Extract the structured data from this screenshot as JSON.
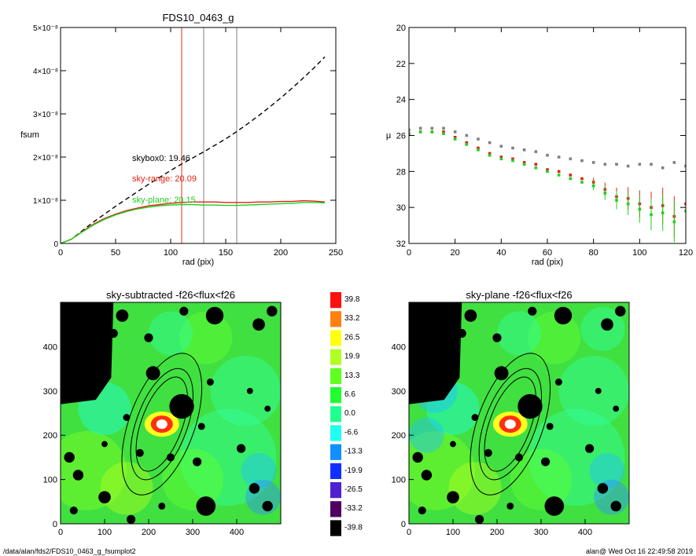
{
  "chart_data": [
    {
      "type": "line",
      "title": "FDS10_0463_g",
      "xlabel": "rad (pix)",
      "ylabel": "fsum",
      "xlim": [
        0,
        250
      ],
      "ylim": [
        0,
        5e-08
      ],
      "x_ticks": [
        "0",
        "50",
        "100",
        "150",
        "200",
        "250"
      ],
      "y_ticks": [
        "0",
        "1×10⁻⁸",
        "2×10⁻⁸",
        "3×10⁻⁸",
        "4×10⁻⁸",
        "5×10⁻⁸"
      ],
      "vlines": [
        {
          "x": 110,
          "color": "#e03020"
        },
        {
          "x": 130,
          "color": "#808080"
        },
        {
          "x": 160,
          "color": "#808080"
        }
      ],
      "annotations": [
        {
          "text": "skybox0: 19.46",
          "color": "#000000"
        },
        {
          "text": "sky-range: 20.09",
          "color": "#e02010"
        },
        {
          "text": "sky-plane: 20.15",
          "color": "#20d020"
        }
      ],
      "series": [
        {
          "style": "dashed",
          "color": "#000000",
          "x": [
            0,
            10,
            20,
            30,
            40,
            50,
            60,
            70,
            80,
            90,
            100,
            110,
            120,
            130,
            140,
            150,
            160,
            170,
            180,
            190,
            200,
            210,
            220,
            230,
            240
          ],
          "y": [
            0,
            1e-09,
            3e-09,
            5e-09,
            6.8e-09,
            8.6e-09,
            1.03e-08,
            1.2e-08,
            1.37e-08,
            1.53e-08,
            1.69e-08,
            1.84e-08,
            1.98e-08,
            2.12e-08,
            2.27e-08,
            2.42e-08,
            2.59e-08,
            2.77e-08,
            2.96e-08,
            3.16e-08,
            3.37e-08,
            3.59e-08,
            3.82e-08,
            4.06e-08,
            4.32e-08
          ]
        },
        {
          "style": "solid",
          "color": "#e02010",
          "x": [
            0,
            10,
            20,
            30,
            40,
            50,
            60,
            70,
            80,
            90,
            100,
            110,
            120,
            130,
            140,
            150,
            160,
            170,
            180,
            190,
            200,
            210,
            220,
            230,
            240
          ],
          "y": [
            0,
            1e-09,
            2.8e-09,
            4.5e-09,
            5.8e-09,
            6.8e-09,
            7.6e-09,
            8.2e-09,
            8.7e-09,
            9e-09,
            9.3e-09,
            9.5e-09,
            9.6e-09,
            9.6e-09,
            9.6e-09,
            9.5e-09,
            9.5e-09,
            9.5e-09,
            9.6e-09,
            9.6e-09,
            9.7e-09,
            9.7e-09,
            9.9e-09,
            9.8e-09,
            9.6e-09
          ]
        },
        {
          "style": "solid",
          "color": "#20d020",
          "x": [
            0,
            10,
            20,
            30,
            40,
            50,
            60,
            70,
            80,
            90,
            100,
            110,
            120,
            130,
            140,
            150,
            160,
            170,
            180,
            190,
            200,
            210,
            220,
            230,
            240
          ],
          "y": [
            0,
            1e-09,
            2.7e-09,
            4.3e-09,
            5.6e-09,
            6.6e-09,
            7.4e-09,
            8e-09,
            8.4e-09,
            8.7e-09,
            8.9e-09,
            9e-09,
            9e-09,
            8.9e-09,
            8.9e-09,
            8.8e-09,
            8.8e-09,
            8.9e-09,
            9e-09,
            9.1e-09,
            9.2e-09,
            9.3e-09,
            9.5e-09,
            9.5e-09,
            9.4e-09
          ]
        }
      ]
    },
    {
      "type": "scatter",
      "title": "",
      "xlabel": "rad (pix)",
      "ylabel": "μ",
      "xlim": [
        0,
        120
      ],
      "ylim": [
        32,
        20
      ],
      "x_ticks": [
        "0",
        "20",
        "40",
        "60",
        "80",
        "100",
        "120"
      ],
      "y_ticks": [
        "20",
        "22",
        "24",
        "26",
        "28",
        "30",
        "32"
      ],
      "series": [
        {
          "color": "#808080",
          "x": [
            0,
            5,
            10,
            15,
            20,
            25,
            30,
            35,
            40,
            45,
            50,
            55,
            60,
            65,
            70,
            75,
            80,
            85,
            90,
            95,
            100,
            105,
            110,
            115,
            120
          ],
          "y": [
            25.7,
            25.6,
            25.6,
            25.6,
            25.8,
            26.0,
            26.2,
            26.4,
            26.6,
            26.7,
            26.8,
            26.9,
            27.1,
            27.2,
            27.3,
            27.4,
            27.5,
            27.6,
            27.6,
            27.7,
            27.6,
            27.6,
            27.8,
            27.5,
            27.7
          ]
        },
        {
          "color": "#e02010",
          "x": [
            0,
            5,
            10,
            15,
            20,
            25,
            30,
            35,
            40,
            45,
            50,
            55,
            60,
            65,
            70,
            75,
            80,
            85,
            90,
            95,
            100,
            105,
            110,
            115,
            120
          ],
          "y": [
            25.9,
            25.8,
            25.8,
            25.8,
            26.1,
            26.4,
            26.7,
            27.0,
            27.2,
            27.3,
            27.5,
            27.6,
            27.9,
            28.0,
            28.2,
            28.4,
            28.6,
            29.0,
            29.4,
            29.5,
            29.8,
            30.0,
            29.9,
            30.5,
            29.8
          ]
        },
        {
          "color": "#20d020",
          "x": [
            0,
            5,
            10,
            15,
            20,
            25,
            30,
            35,
            40,
            45,
            50,
            55,
            60,
            65,
            70,
            75,
            80,
            85,
            90,
            95,
            100,
            105,
            110,
            115,
            120
          ],
          "y": [
            25.9,
            25.8,
            25.8,
            25.9,
            26.2,
            26.5,
            26.8,
            27.1,
            27.3,
            27.4,
            27.6,
            27.8,
            28.0,
            28.2,
            28.4,
            28.6,
            28.8,
            29.2,
            29.6,
            29.8,
            30.1,
            30.4,
            30.3,
            30.8,
            30.2
          ]
        }
      ]
    },
    {
      "type": "heatmap",
      "title": "sky-subtracted -f26<flux<f26",
      "xlim": [
        0,
        500
      ],
      "ylim": [
        0,
        500
      ],
      "x_ticks": [
        "0",
        "100",
        "200",
        "300",
        "400"
      ],
      "y_ticks": [
        "0",
        "100",
        "200",
        "300",
        "400"
      ]
    },
    {
      "type": "heatmap",
      "title": "sky-plane -f26<flux<f26",
      "xlim": [
        0,
        500
      ],
      "ylim": [
        0,
        500
      ],
      "x_ticks": [
        "0",
        "100",
        "200",
        "300",
        "400"
      ],
      "y_ticks": [
        "0",
        "100",
        "200",
        "300",
        "400"
      ]
    }
  ],
  "colorbar": {
    "labels": [
      "39.8",
      "33.2",
      "26.5",
      "19.9",
      "13.3",
      "6.6",
      "0.0",
      "-6.6",
      "-13.3",
      "-19.9",
      "-26.5",
      "-33.2",
      "-39.8"
    ],
    "colors": [
      "#ff1010",
      "#ff8010",
      "#ffff10",
      "#b0ff20",
      "#60ff20",
      "#20ff30",
      "#20ff90",
      "#20fff0",
      "#1090ff",
      "#1030ff",
      "#5020d0",
      "#500060",
      "#000000"
    ]
  },
  "footer": {
    "path": "/data/alan/fds2/FDS10_0463_g_fsumplot2",
    "stamp": "alan@  Wed Oct 16 22:49:58 2019"
  }
}
